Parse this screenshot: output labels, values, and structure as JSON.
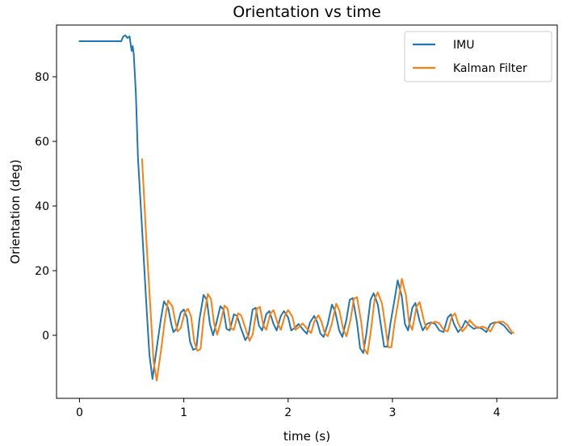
{
  "chart_data": {
    "type": "line",
    "title": "Orientation vs time",
    "xlabel": "time (s)",
    "ylabel": "Orientation (deg)",
    "xlim": [
      -0.22,
      4.58
    ],
    "ylim": [
      -19.5,
      96
    ],
    "xticks": [
      0,
      1,
      2,
      3,
      4
    ],
    "yticks": [
      0,
      20,
      40,
      60,
      80
    ],
    "legend_position": "top-right",
    "series": [
      {
        "name": "IMU",
        "color": "#1f77b4",
        "points": [
          [
            0,
            91
          ],
          [
            0.2,
            91
          ],
          [
            0.3,
            91
          ],
          [
            0.4,
            91
          ],
          [
            0.42,
            92.5
          ],
          [
            0.44,
            92.8
          ],
          [
            0.46,
            92
          ],
          [
            0.48,
            92.5
          ],
          [
            0.5,
            88
          ],
          [
            0.51,
            89.5
          ],
          [
            0.52,
            87
          ],
          [
            0.54,
            75
          ],
          [
            0.55,
            65
          ],
          [
            0.56,
            55
          ],
          [
            0.6,
            33
          ],
          [
            0.64,
            10
          ],
          [
            0.67,
            -6
          ],
          [
            0.7,
            -13.5
          ],
          [
            0.74,
            -4
          ],
          [
            0.78,
            5
          ],
          [
            0.81,
            10.5
          ],
          [
            0.85,
            8.5
          ],
          [
            0.88,
            3.5
          ],
          [
            0.9,
            1
          ],
          [
            0.93,
            2
          ],
          [
            0.97,
            7
          ],
          [
            1.0,
            8
          ],
          [
            1.03,
            5.5
          ],
          [
            1.06,
            -2
          ],
          [
            1.09,
            -4.5
          ],
          [
            1.12,
            -4
          ],
          [
            1.15,
            5
          ],
          [
            1.19,
            12.5
          ],
          [
            1.22,
            11
          ],
          [
            1.25,
            3.5
          ],
          [
            1.28,
            0
          ],
          [
            1.31,
            3.5
          ],
          [
            1.35,
            9
          ],
          [
            1.38,
            8
          ],
          [
            1.41,
            2
          ],
          [
            1.44,
            1.5
          ],
          [
            1.48,
            6.5
          ],
          [
            1.51,
            6
          ],
          [
            1.55,
            2
          ],
          [
            1.59,
            -1.5
          ],
          [
            1.62,
            0
          ],
          [
            1.66,
            8
          ],
          [
            1.69,
            8.5
          ],
          [
            1.72,
            3
          ],
          [
            1.75,
            1.5
          ],
          [
            1.79,
            6.5
          ],
          [
            1.82,
            7.5
          ],
          [
            1.86,
            3.5
          ],
          [
            1.89,
            1.5
          ],
          [
            1.93,
            6
          ],
          [
            1.96,
            7.5
          ],
          [
            2.0,
            5.5
          ],
          [
            2.03,
            1.5
          ],
          [
            2.07,
            2.5
          ],
          [
            2.1,
            3.5
          ],
          [
            2.15,
            1.5
          ],
          [
            2.18,
            0.5
          ],
          [
            2.21,
            4
          ],
          [
            2.25,
            6
          ],
          [
            2.28,
            4
          ],
          [
            2.31,
            0.5
          ],
          [
            2.34,
            -0.5
          ],
          [
            2.38,
            3.5
          ],
          [
            2.42,
            9.5
          ],
          [
            2.45,
            7.5
          ],
          [
            2.49,
            1.5
          ],
          [
            2.52,
            -0.5
          ],
          [
            2.56,
            5
          ],
          [
            2.59,
            11
          ],
          [
            2.62,
            11.5
          ],
          [
            2.66,
            4
          ],
          [
            2.69,
            -4
          ],
          [
            2.72,
            -5.5
          ],
          [
            2.75,
            0.5
          ],
          [
            2.79,
            11
          ],
          [
            2.82,
            13
          ],
          [
            2.86,
            9.5
          ],
          [
            2.89,
            3
          ],
          [
            2.92,
            -3.5
          ],
          [
            2.95,
            -3.5
          ],
          [
            2.98,
            3.5
          ],
          [
            3.02,
            11
          ],
          [
            3.05,
            17
          ],
          [
            3.09,
            12
          ],
          [
            3.12,
            3.5
          ],
          [
            3.15,
            1.5
          ],
          [
            3.19,
            8.5
          ],
          [
            3.22,
            10
          ],
          [
            3.26,
            4.5
          ],
          [
            3.29,
            1.5
          ],
          [
            3.33,
            3.5
          ],
          [
            3.37,
            4
          ],
          [
            3.41,
            3.5
          ],
          [
            3.45,
            1.5
          ],
          [
            3.49,
            1
          ],
          [
            3.53,
            5.5
          ],
          [
            3.56,
            6.5
          ],
          [
            3.59,
            3.5
          ],
          [
            3.63,
            1
          ],
          [
            3.67,
            2.5
          ],
          [
            3.7,
            4.5
          ],
          [
            3.74,
            3
          ],
          [
            3.78,
            2
          ],
          [
            3.82,
            2.5
          ],
          [
            3.86,
            2
          ],
          [
            3.9,
            1
          ],
          [
            3.94,
            3.5
          ],
          [
            3.98,
            4
          ],
          [
            4.02,
            4
          ],
          [
            4.07,
            3
          ],
          [
            4.12,
            1
          ],
          [
            4.14,
            0.5
          ]
        ]
      },
      {
        "name": "Kalman Filter",
        "color": "#ff7f0e",
        "points": [
          [
            0.6,
            54.5
          ],
          [
            0.64,
            30
          ],
          [
            0.68,
            8
          ],
          [
            0.71,
            -8
          ],
          [
            0.74,
            -14
          ],
          [
            0.78,
            -5
          ],
          [
            0.82,
            5
          ],
          [
            0.85,
            10.8
          ],
          [
            0.89,
            9
          ],
          [
            0.92,
            4
          ],
          [
            0.94,
            1.2
          ],
          [
            0.97,
            2.2
          ],
          [
            1.01,
            7.2
          ],
          [
            1.04,
            8.2
          ],
          [
            1.07,
            5.8
          ],
          [
            1.1,
            -2
          ],
          [
            1.13,
            -4.8
          ],
          [
            1.16,
            -4.2
          ],
          [
            1.19,
            5.2
          ],
          [
            1.23,
            12.8
          ],
          [
            1.26,
            11.3
          ],
          [
            1.29,
            3.8
          ],
          [
            1.32,
            0.2
          ],
          [
            1.35,
            3.7
          ],
          [
            1.39,
            9.2
          ],
          [
            1.42,
            8.3
          ],
          [
            1.45,
            2.2
          ],
          [
            1.48,
            1.7
          ],
          [
            1.52,
            6.8
          ],
          [
            1.55,
            6.2
          ],
          [
            1.59,
            2.2
          ],
          [
            1.63,
            -1.7
          ],
          [
            1.66,
            0.2
          ],
          [
            1.7,
            8.2
          ],
          [
            1.73,
            8.8
          ],
          [
            1.76,
            3.2
          ],
          [
            1.79,
            1.7
          ],
          [
            1.83,
            6.8
          ],
          [
            1.86,
            7.8
          ],
          [
            1.9,
            3.7
          ],
          [
            1.93,
            1.7
          ],
          [
            1.97,
            6.2
          ],
          [
            2.0,
            7.8
          ],
          [
            2.04,
            5.8
          ],
          [
            2.07,
            1.7
          ],
          [
            2.11,
            2.7
          ],
          [
            2.14,
            3.7
          ],
          [
            2.19,
            1.7
          ],
          [
            2.22,
            0.7
          ],
          [
            2.25,
            4.2
          ],
          [
            2.29,
            6.2
          ],
          [
            2.32,
            4.2
          ],
          [
            2.35,
            0.7
          ],
          [
            2.38,
            -0.3
          ],
          [
            2.42,
            3.7
          ],
          [
            2.46,
            9.8
          ],
          [
            2.49,
            7.8
          ],
          [
            2.53,
            1.7
          ],
          [
            2.56,
            -0.3
          ],
          [
            2.6,
            5.2
          ],
          [
            2.63,
            11.3
          ],
          [
            2.66,
            11.8
          ],
          [
            2.7,
            4.2
          ],
          [
            2.73,
            -4.2
          ],
          [
            2.76,
            -5.8
          ],
          [
            2.79,
            0.7
          ],
          [
            2.83,
            11.3
          ],
          [
            2.86,
            13.3
          ],
          [
            2.9,
            9.8
          ],
          [
            2.93,
            3.2
          ],
          [
            2.96,
            -3.7
          ],
          [
            2.99,
            -3.7
          ],
          [
            3.02,
            3.7
          ],
          [
            3.06,
            11.3
          ],
          [
            3.09,
            17.5
          ],
          [
            3.13,
            12.3
          ],
          [
            3.16,
            3.7
          ],
          [
            3.19,
            1.7
          ],
          [
            3.23,
            8.8
          ],
          [
            3.26,
            10.3
          ],
          [
            3.3,
            4.7
          ],
          [
            3.33,
            1.7
          ],
          [
            3.37,
            3.7
          ],
          [
            3.41,
            4.2
          ],
          [
            3.45,
            3.7
          ],
          [
            3.49,
            1.7
          ],
          [
            3.53,
            1.2
          ],
          [
            3.57,
            5.8
          ],
          [
            3.6,
            6.8
          ],
          [
            3.63,
            3.7
          ],
          [
            3.67,
            1.2
          ],
          [
            3.71,
            2.7
          ],
          [
            3.74,
            4.7
          ],
          [
            3.78,
            3.2
          ],
          [
            3.82,
            2.2
          ],
          [
            3.86,
            2.7
          ],
          [
            3.9,
            2.2
          ],
          [
            3.94,
            1.2
          ],
          [
            3.98,
            3.7
          ],
          [
            4.02,
            4.2
          ],
          [
            4.06,
            4.2
          ],
          [
            4.1,
            3.2
          ],
          [
            4.14,
            1.2
          ],
          [
            4.16,
            0.7
          ]
        ]
      }
    ]
  }
}
